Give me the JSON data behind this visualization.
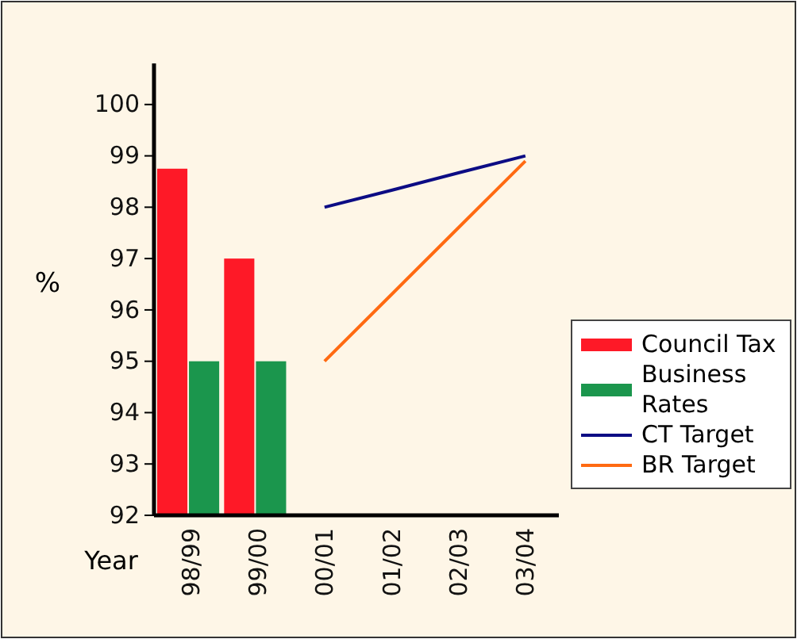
{
  "chart_data": {
    "type": "bar",
    "xlabel": "Year",
    "ylabel": "%",
    "categories": [
      "98/99",
      "99/00",
      "00/01",
      "01/02",
      "02/03",
      "03/04"
    ],
    "series": [
      {
        "name": "Council Tax",
        "color": "#fe1927",
        "values": [
          98.75,
          97.0,
          null,
          null,
          null,
          null
        ]
      },
      {
        "name": "Business Rates",
        "color": "#1b964d",
        "values": [
          95,
          95,
          null,
          null,
          null,
          null
        ]
      },
      {
        "name": "CT Target",
        "type": "line",
        "color": "#0c0c84",
        "values": [
          null,
          null,
          98,
          98.33,
          98.67,
          99
        ]
      },
      {
        "name": "BR Target",
        "type": "line",
        "color": "#ff6a12",
        "values": [
          null,
          null,
          95,
          96.3,
          97.6,
          98.9
        ]
      }
    ],
    "ylim": [
      92,
      100.8
    ],
    "yticks": [
      92,
      93,
      94,
      95,
      96,
      97,
      98,
      99,
      100
    ],
    "grid": false,
    "legend": "right"
  }
}
